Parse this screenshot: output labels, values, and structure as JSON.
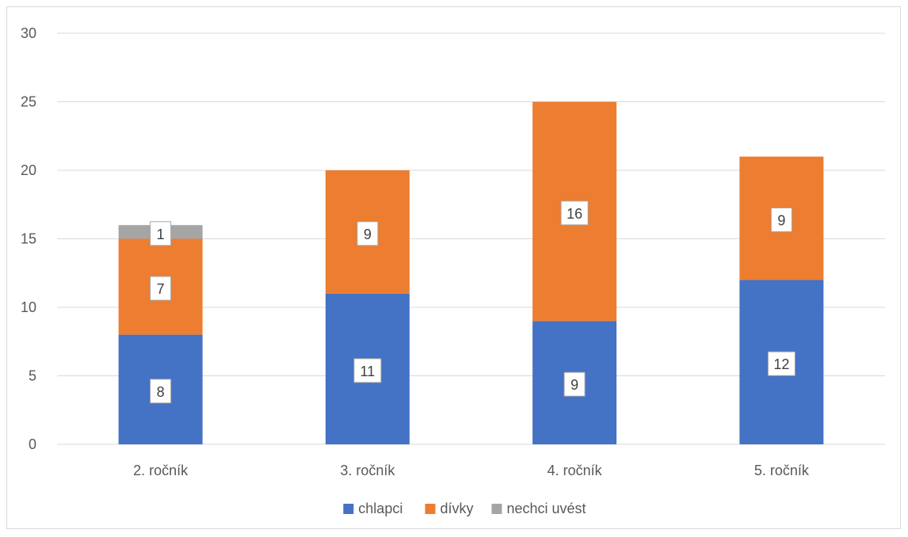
{
  "chart_data": {
    "type": "bar",
    "stacked": true,
    "categories": [
      "2. ročník",
      "3. ročník",
      "4. ročník",
      "5. ročník"
    ],
    "series": [
      {
        "name": "chlapci",
        "values": [
          8,
          11,
          9,
          12
        ],
        "color": "#4472C4"
      },
      {
        "name": "dívky",
        "values": [
          7,
          9,
          16,
          9
        ],
        "color": "#ED7D31"
      },
      {
        "name": "nechci uvést",
        "values": [
          1,
          0,
          0,
          0
        ],
        "color": "#A5A5A5"
      }
    ],
    "ylim": [
      0,
      30
    ],
    "yticks": [
      0,
      5,
      10,
      15,
      20,
      25,
      30
    ],
    "grid": true,
    "legend_position": "bottom",
    "data_labels": true
  }
}
